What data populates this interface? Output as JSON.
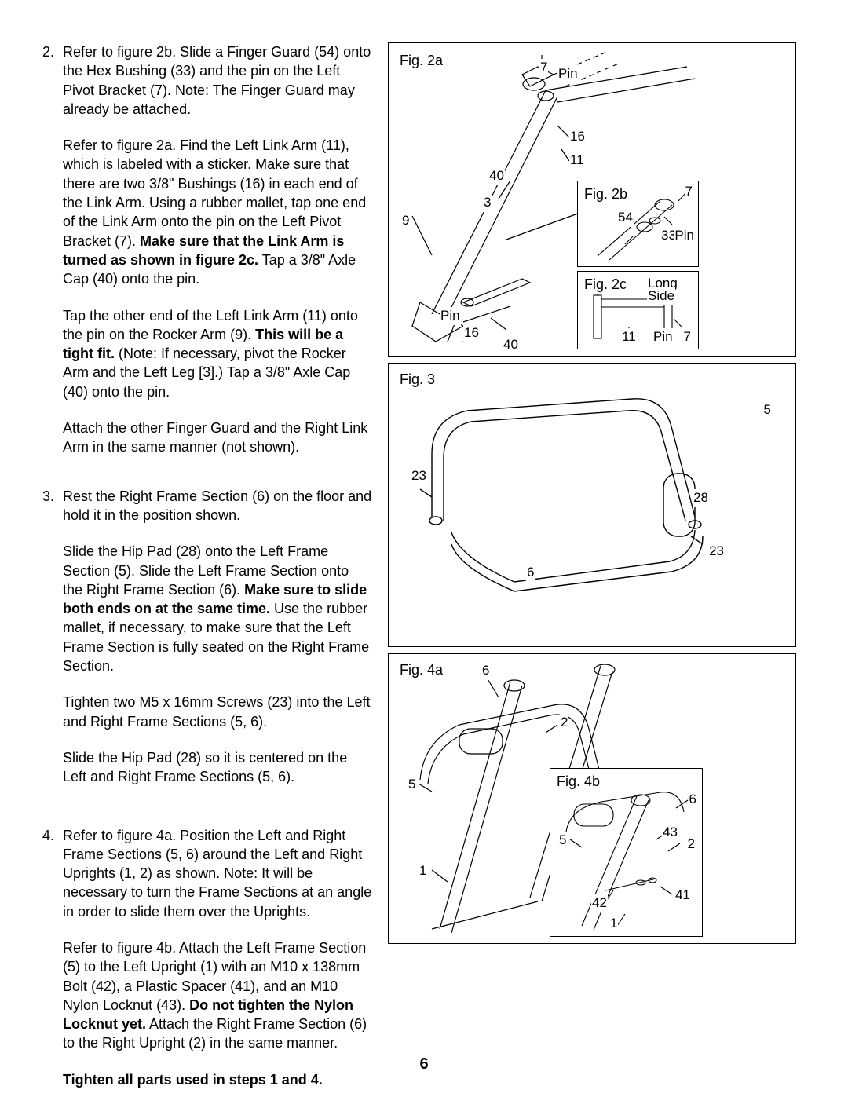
{
  "page_number": "6",
  "steps": [
    {
      "num": "2.",
      "paragraphs": [
        {
          "runs": [
            {
              "t": "Refer to figure 2b. Slide a Finger Guard (54) onto the Hex Bushing (33) and the pin on the Left Pivot Bracket (7). Note: The Finger Guard may already be attached."
            }
          ]
        },
        {
          "runs": [
            {
              "t": "Refer to figure 2a. Find the Left Link Arm (11), which is labeled with a sticker. Make sure that there are two 3/8\" Bushings (16) in each end of the Link Arm. Using a rubber mallet, tap one end of the Link Arm onto the pin on the Left Pivot Bracket (7). "
            },
            {
              "t": "Make sure that the Link Arm is turned as shown in figure 2c.",
              "b": true
            },
            {
              "t": " Tap a 3/8\" Axle Cap (40) onto the pin."
            }
          ]
        },
        {
          "runs": [
            {
              "t": "Tap the other end of the Left Link Arm (11) onto the pin on the Rocker Arm (9). "
            },
            {
              "t": "This will be a tight fit.",
              "b": true
            },
            {
              "t": " (Note: If necessary, pivot the Rocker Arm and the Left Leg [3].) Tap a 3/8\" Axle Cap (40) onto the pin."
            }
          ]
        },
        {
          "runs": [
            {
              "t": "Attach the other Finger Guard and the Right Link Arm in the same manner (not shown)."
            }
          ]
        }
      ]
    },
    {
      "num": "3.",
      "paragraphs": [
        {
          "runs": [
            {
              "t": "Rest the Right Frame Section (6) on the floor and hold it in the position shown."
            }
          ]
        },
        {
          "runs": [
            {
              "t": "Slide the Hip Pad (28) onto the Left Frame Section (5). Slide the Left Frame Section onto the Right Frame Section (6). "
            },
            {
              "t": "Make sure to slide both ends on at the same time.",
              "b": true
            },
            {
              "t": " Use the rubber mallet, if necessary, to make sure that the Left Frame Section is fully seated on the Right Frame Section."
            }
          ]
        },
        {
          "runs": [
            {
              "t": "Tighten two M5 x 16mm Screws (23) into the Left and Right Frame Sections (5, 6)."
            }
          ]
        },
        {
          "runs": [
            {
              "t": "Slide the Hip Pad (28) so it is centered on the Left and Right Frame Sections (5, 6)."
            }
          ]
        }
      ]
    },
    {
      "num": "4.",
      "paragraphs": [
        {
          "runs": [
            {
              "t": "Refer to figure 4a. Position the Left and Right Frame Sections (5, 6) around the Left and Right Uprights (1, 2) as shown. Note: It will be necessary to turn the Frame Sections at an angle in order to slide them over the Uprights."
            }
          ]
        },
        {
          "runs": [
            {
              "t": "Refer to figure 4b. Attach the Left Frame Section (5) to the Left Upright (1) with an M10 x 138mm Bolt (42), a Plastic Spacer (41), and an M10 Nylon Locknut (43). "
            },
            {
              "t": "Do not tighten the Nylon Locknut yet.",
              "b": true
            },
            {
              "t": " Attach the Right Frame Section (6) to the Right Upright (2) in the same manner."
            }
          ]
        },
        {
          "runs": [
            {
              "t": "Tighten all parts used in steps 1 and 4.",
              "b": true
            }
          ]
        }
      ]
    }
  ],
  "fig2": {
    "label": "Fig. 2a",
    "inset_b_label": "Fig. 2b",
    "inset_c_label": "Fig. 2c",
    "inset_c_text1": "Long",
    "inset_c_text2": "Side",
    "callouts": {
      "c7": "7",
      "cPin1": "Pin",
      "c16a": "16",
      "c11": "11",
      "c40a": "40",
      "c3": "3",
      "c9": "9",
      "cPin2": "Pin",
      "c16b": "16",
      "c40b": "40",
      "b7": "7",
      "b54": "54",
      "b33": "33",
      "bPin": "Pin",
      "c_11": "11",
      "c_Pin": "Pin",
      "c_7": "7"
    }
  },
  "fig3": {
    "label": "Fig. 3",
    "callouts": {
      "c5": "5",
      "c23a": "23",
      "c28": "28",
      "c23b": "23",
      "c6": "6"
    }
  },
  "fig4": {
    "label": "Fig. 4a",
    "inset_label": "Fig. 4b",
    "callouts": {
      "a6": "6",
      "a2": "2",
      "a5": "5",
      "a1": "1",
      "b6": "6",
      "b5": "5",
      "b43": "43",
      "b2": "2",
      "b42": "42",
      "b41": "41",
      "b1": "1"
    }
  }
}
